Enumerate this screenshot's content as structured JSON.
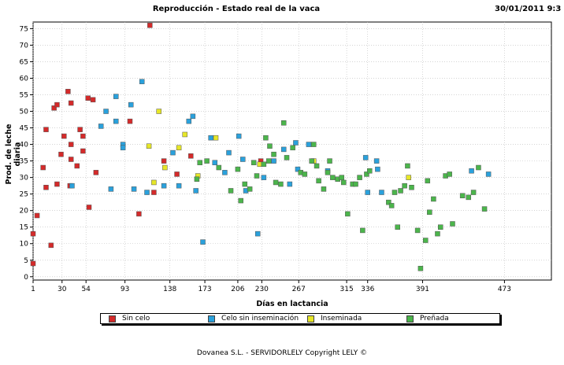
{
  "chart_data": {
    "type": "scatter",
    "title": "Reproducción - Estado real de la vaca",
    "datetime": "30/01/2011 9:3",
    "xlabel": "Días en lactancia",
    "ylabel": "Prod. de leche diaria",
    "xlim": [
      1,
      520
    ],
    "ylim": [
      -1,
      77
    ],
    "xticks": [
      1,
      30,
      54,
      93,
      138,
      173,
      206,
      230,
      267,
      315,
      336,
      391,
      473
    ],
    "yticks": [
      0,
      5,
      10,
      15,
      20,
      25,
      30,
      35,
      40,
      45,
      50,
      55,
      60,
      65,
      70,
      75
    ],
    "series": [
      {
        "name": "Sin celo",
        "color": "#d42a2a",
        "points": [
          [
            1,
            13
          ],
          [
            1,
            4
          ],
          [
            5,
            18.5
          ],
          [
            11,
            33
          ],
          [
            14,
            27
          ],
          [
            14,
            44.5
          ],
          [
            19,
            9.5
          ],
          [
            22,
            51
          ],
          [
            25,
            52
          ],
          [
            25,
            28
          ],
          [
            29,
            37
          ],
          [
            32,
            42.5
          ],
          [
            36,
            56
          ],
          [
            38,
            27.5
          ],
          [
            39,
            40
          ],
          [
            39,
            52.5
          ],
          [
            39,
            35.5
          ],
          [
            45,
            33.5
          ],
          [
            48,
            44.5
          ],
          [
            51,
            42.5
          ],
          [
            51,
            38
          ],
          [
            56,
            54
          ],
          [
            57,
            21
          ],
          [
            61,
            53.5
          ],
          [
            64,
            31.5
          ],
          [
            98,
            47
          ],
          [
            107,
            19
          ],
          [
            118,
            76
          ],
          [
            122,
            25.5
          ],
          [
            132,
            35
          ],
          [
            145,
            31
          ],
          [
            159,
            36.5
          ],
          [
            229,
            35
          ]
        ]
      },
      {
        "name": "Celo sin inseminación",
        "color": "#2aa1dc",
        "points": [
          [
            40,
            27.5
          ],
          [
            69,
            45.5
          ],
          [
            74,
            50
          ],
          [
            79,
            26.5
          ],
          [
            84,
            54.5
          ],
          [
            84,
            47
          ],
          [
            91,
            40
          ],
          [
            91,
            39
          ],
          [
            99,
            52
          ],
          [
            102,
            26.5
          ],
          [
            110,
            59
          ],
          [
            115,
            25.5
          ],
          [
            132,
            27.5
          ],
          [
            141,
            37.5
          ],
          [
            147,
            27.5
          ],
          [
            157,
            47
          ],
          [
            161,
            48.5
          ],
          [
            164,
            26
          ],
          [
            171,
            10.5
          ],
          [
            179,
            42
          ],
          [
            183,
            34.5
          ],
          [
            193,
            31.5
          ],
          [
            197,
            37.5
          ],
          [
            207,
            42.5
          ],
          [
            211,
            35.5
          ],
          [
            214,
            26
          ],
          [
            226,
            13
          ],
          [
            232,
            30
          ],
          [
            242,
            35
          ],
          [
            252,
            38.5
          ],
          [
            258,
            28
          ],
          [
            264,
            40.5
          ],
          [
            266,
            32.5
          ],
          [
            277,
            40
          ],
          [
            296,
            32
          ],
          [
            334,
            36
          ],
          [
            336,
            25.5
          ],
          [
            345,
            35
          ],
          [
            346,
            32.5
          ],
          [
            350,
            25.5
          ],
          [
            440,
            32
          ],
          [
            457,
            31
          ]
        ]
      },
      {
        "name": "Inseminada",
        "color": "#e6e628",
        "points": [
          [
            117,
            39.5
          ],
          [
            122,
            28.5
          ],
          [
            127,
            50
          ],
          [
            133,
            33
          ],
          [
            147,
            39
          ],
          [
            153,
            43
          ],
          [
            166,
            30.5
          ],
          [
            184,
            42
          ],
          [
            228,
            34
          ],
          [
            282,
            35
          ],
          [
            377,
            30
          ]
        ]
      },
      {
        "name": "Preñada",
        "color": "#4bb54b",
        "points": [
          [
            165,
            29.5
          ],
          [
            168,
            34.5
          ],
          [
            175,
            35
          ],
          [
            187,
            33
          ],
          [
            199,
            26
          ],
          [
            206,
            32.5
          ],
          [
            209,
            23
          ],
          [
            213,
            28
          ],
          [
            218,
            26.5
          ],
          [
            222,
            34.5
          ],
          [
            225,
            30.5
          ],
          [
            232,
            34
          ],
          [
            234,
            42
          ],
          [
            237,
            35
          ],
          [
            238,
            39.5
          ],
          [
            242,
            37
          ],
          [
            244,
            28.5
          ],
          [
            249,
            28
          ],
          [
            252,
            46.5
          ],
          [
            255,
            36
          ],
          [
            261,
            39
          ],
          [
            269,
            31.5
          ],
          [
            273,
            31
          ],
          [
            280,
            35
          ],
          [
            282,
            40
          ],
          [
            285,
            33.5
          ],
          [
            287,
            29
          ],
          [
            292,
            26.5
          ],
          [
            296,
            31.5
          ],
          [
            298,
            35
          ],
          [
            301,
            30
          ],
          [
            306,
            29.5
          ],
          [
            310,
            30
          ],
          [
            312,
            28.5
          ],
          [
            316,
            19
          ],
          [
            321,
            28
          ],
          [
            324,
            28
          ],
          [
            328,
            30
          ],
          [
            331,
            14
          ],
          [
            335,
            31
          ],
          [
            338,
            32
          ],
          [
            357,
            22.5
          ],
          [
            360,
            21.5
          ],
          [
            363,
            25.5
          ],
          [
            366,
            15
          ],
          [
            369,
            26
          ],
          [
            373,
            27.5
          ],
          [
            376,
            33.5
          ],
          [
            380,
            27
          ],
          [
            386,
            14
          ],
          [
            389,
            2.5
          ],
          [
            394,
            11
          ],
          [
            396,
            29
          ],
          [
            398,
            19.5
          ],
          [
            402,
            23.5
          ],
          [
            406,
            13
          ],
          [
            409,
            15
          ],
          [
            414,
            30.5
          ],
          [
            418,
            31
          ],
          [
            421,
            16
          ],
          [
            431,
            24.5
          ],
          [
            437,
            24
          ],
          [
            442,
            25.5
          ],
          [
            447,
            33
          ],
          [
            453,
            20.5
          ]
        ]
      }
    ]
  },
  "footer": "Dovanea S.L. - SERVIDORLELY Copyright LELY ©"
}
